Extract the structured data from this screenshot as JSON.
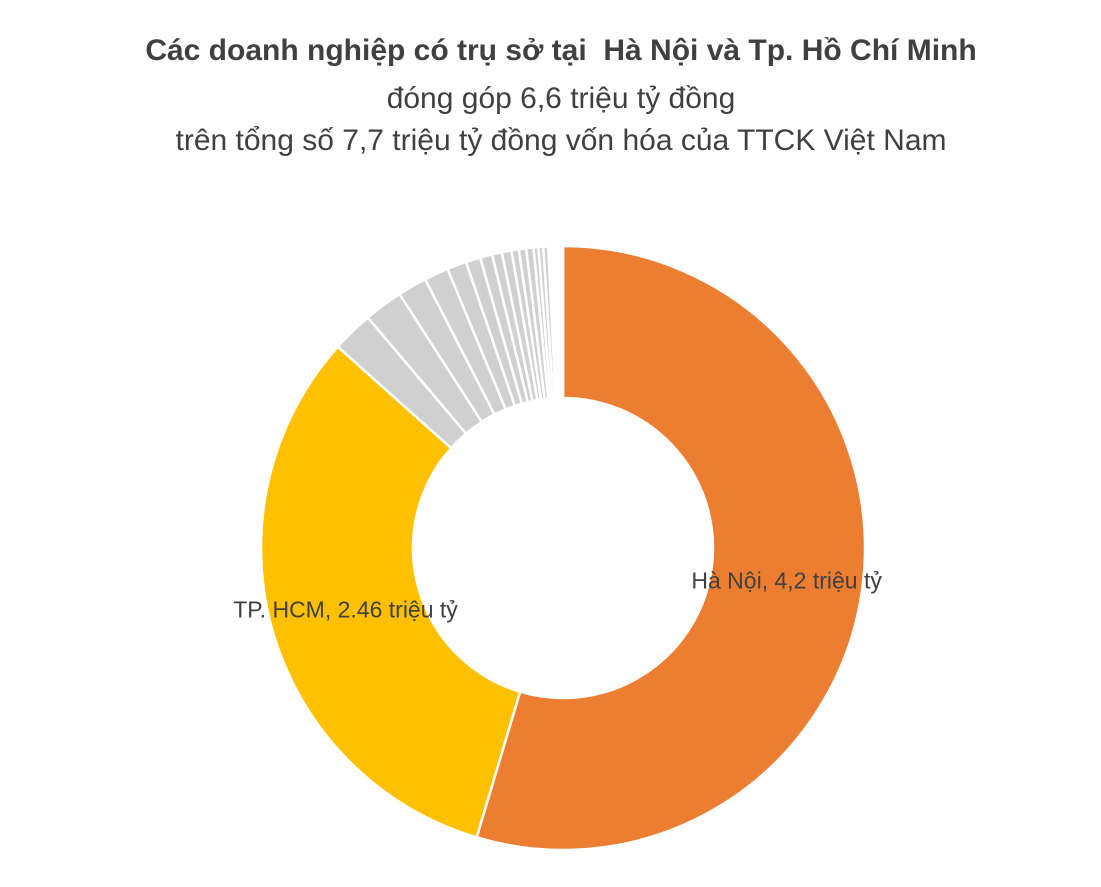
{
  "chart_data": {
    "type": "donut",
    "title": "Các doanh nghiệp có trụ sở tại  Hà Nội và Tp. Hồ Chí Minh",
    "subtitle": [
      "đóng góp 6,6 triệu tỷ đồng",
      "trên tổng số 7,7 triệu tỷ đồng vốn hóa của TTCK Việt Nam"
    ],
    "values": [
      4.2,
      2.46,
      0.17,
      0.16,
      0.12,
      0.1,
      0.08,
      0.06,
      0.05,
      0.04,
      0.04,
      0.03,
      0.03,
      0.03,
      0.02,
      0.02,
      0.02,
      0.01,
      0.01,
      0.01,
      0.01,
      0.01,
      0.01
    ],
    "value_labels": [
      "Hà Nội, 4,2 triệu tỷ",
      "TP. HCM, 2.46 triệu tỷ",
      null,
      null,
      null,
      null,
      null,
      null,
      null,
      null,
      null,
      null,
      null,
      null,
      null,
      null,
      null,
      null,
      null,
      null,
      null,
      null,
      null
    ],
    "colors": [
      "#ED7D31",
      "#FFC000",
      "#D0D0D0",
      "#D0D0D0",
      "#D0D0D0",
      "#D0D0D0",
      "#D0D0D0",
      "#D0D0D0",
      "#D0D0D0",
      "#D0D0D0",
      "#D0D0D0",
      "#D0D0D0",
      "#D0D0D0",
      "#D0D0D0",
      "#D0D0D0",
      "#D0D0D0",
      "#D0D0D0",
      "#D0D0D0",
      "#D0D0D0",
      "#D0D0D0",
      "#D0D0D0",
      "#D0D0D0",
      "#D0D0D0"
    ]
  }
}
